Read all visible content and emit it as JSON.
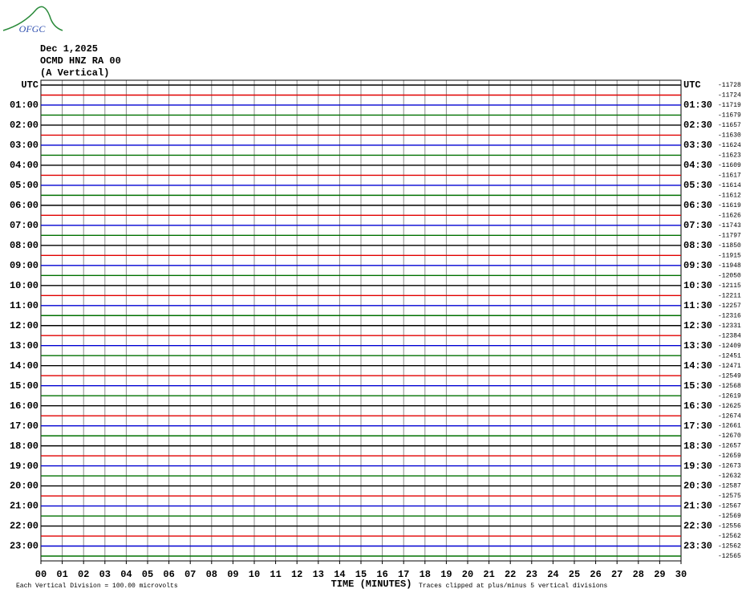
{
  "header": {
    "logo": "OFGC",
    "date": "Dec 1,2025",
    "station": "OCMD HNZ RA 00",
    "component": "(A Vertical)"
  },
  "left_labels": [
    "UTC",
    "01:00",
    "02:00",
    "03:00",
    "04:00",
    "05:00",
    "06:00",
    "07:00",
    "08:00",
    "09:00",
    "10:00",
    "11:00",
    "12:00",
    "13:00",
    "14:00",
    "15:00",
    "16:00",
    "17:00",
    "18:00",
    "19:00",
    "20:00",
    "21:00",
    "22:00",
    "23:00"
  ],
  "right_labels": [
    "UTC",
    "01:30",
    "02:30",
    "03:30",
    "04:30",
    "05:30",
    "06:30",
    "07:30",
    "08:30",
    "09:30",
    "10:30",
    "11:30",
    "12:30",
    "13:30",
    "14:30",
    "15:30",
    "16:30",
    "17:30",
    "18:30",
    "19:30",
    "20:30",
    "21:30",
    "22:30",
    "23:30"
  ],
  "right_values": [
    -11728,
    -11724,
    -11719,
    -11679,
    -11657,
    -11630,
    -11624,
    -11623,
    -11609,
    -11617,
    -11614,
    -11612,
    -11619,
    -11626,
    -11743,
    -11797,
    -11850,
    -11915,
    -11948,
    -12050,
    -12115,
    -12211,
    -12257,
    -12316,
    -12331,
    -12384,
    -12409,
    -12451,
    -12471,
    -12549,
    -12568,
    -12619,
    -12625,
    -12674,
    -12661,
    -12670,
    -12657,
    -12659,
    -12673,
    -12632,
    -12587,
    -12575,
    -12567,
    -12569,
    -12556,
    -12562,
    -12562,
    -12565
  ],
  "trace_colors": [
    "#000000",
    "#e00000",
    "#0000d0",
    "#007000"
  ],
  "x_axis": {
    "title": "TIME (MINUTES)",
    "ticks": [
      "00",
      "01",
      "02",
      "03",
      "04",
      "05",
      "06",
      "07",
      "08",
      "09",
      "10",
      "11",
      "12",
      "13",
      "14",
      "15",
      "16",
      "17",
      "18",
      "19",
      "20",
      "21",
      "22",
      "23",
      "24",
      "25",
      "26",
      "27",
      "28",
      "29",
      "30"
    ]
  },
  "footer": {
    "scale": "Each Vertical Division =  100.00 microvolts",
    "clip": "Traces clipped at plus/minus 5 vertical divisions"
  }
}
